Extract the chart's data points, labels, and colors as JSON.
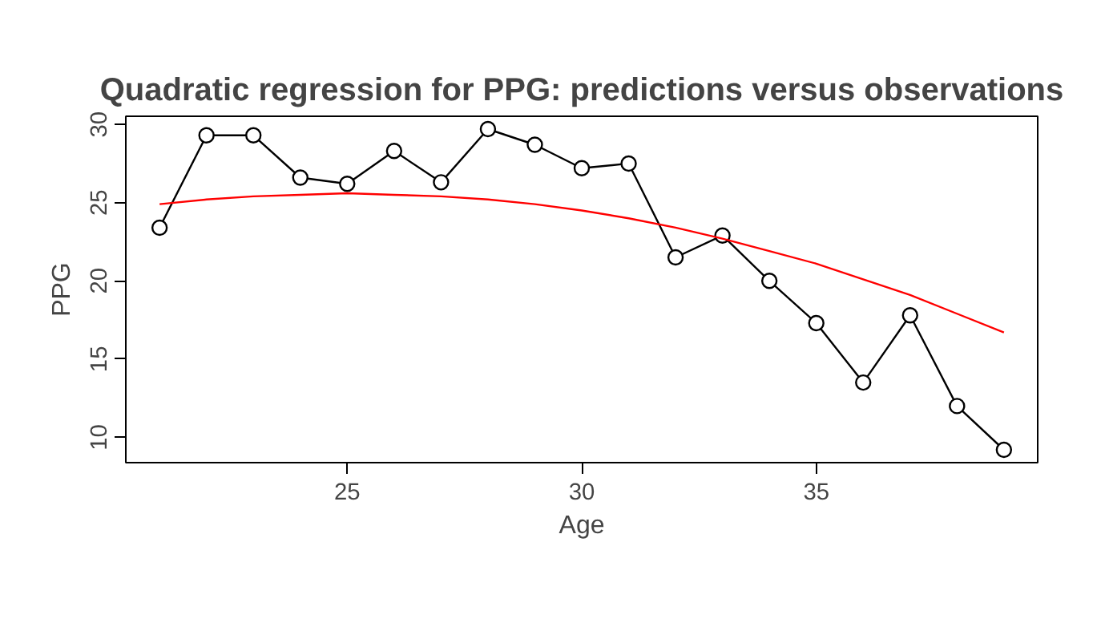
{
  "chart_data": {
    "type": "line",
    "title": "Quadratic regression for PPG: predictions versus observations",
    "xlabel": "Age",
    "ylabel": "PPG",
    "x": [
      21,
      22,
      23,
      24,
      25,
      26,
      27,
      28,
      29,
      30,
      31,
      32,
      33,
      34,
      35,
      36,
      37,
      38,
      39
    ],
    "series": [
      {
        "color": "#000000",
        "marker": "circle",
        "values": [
          23.4,
          29.3,
          29.3,
          26.6,
          26.2,
          28.3,
          26.3,
          29.7,
          28.7,
          27.2,
          27.5,
          21.5,
          22.9,
          20.0,
          17.3,
          13.5,
          17.8,
          12.0,
          9.2
        ]
      },
      {
        "color": "#ff0000",
        "marker": "none",
        "values": [
          24.9,
          25.2,
          25.4,
          25.5,
          25.6,
          25.5,
          25.4,
          25.2,
          24.9,
          24.5,
          24.0,
          23.4,
          22.7,
          21.9,
          21.1,
          20.1,
          19.1,
          17.9,
          16.7
        ]
      }
    ],
    "xlim": [
      20.28,
      39.72
    ],
    "ylim": [
      8.38,
      30.52
    ],
    "xticks": [
      25,
      30,
      35
    ],
    "yticks": [
      10,
      15,
      20,
      25,
      30
    ]
  }
}
